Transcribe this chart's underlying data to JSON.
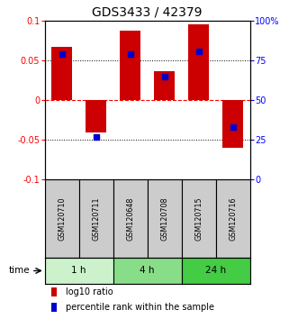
{
  "title": "GDS3433 / 42379",
  "samples": [
    "GSM120710",
    "GSM120711",
    "GSM120648",
    "GSM120708",
    "GSM120715",
    "GSM120716"
  ],
  "log10_ratio": [
    0.067,
    -0.04,
    0.088,
    0.037,
    0.095,
    -0.06
  ],
  "percentile_rank": [
    79,
    27,
    79,
    65,
    81,
    33
  ],
  "ylim_left": [
    -0.1,
    0.1
  ],
  "ylim_right": [
    0,
    100
  ],
  "yticks_left": [
    -0.1,
    -0.05,
    0,
    0.05,
    0.1
  ],
  "ytick_labels_left": [
    "-0.1",
    "-0.05",
    "0",
    "0.05",
    "0.1"
  ],
  "yticks_right": [
    0,
    25,
    50,
    75,
    100
  ],
  "ytick_labels_right": [
    "0",
    "25",
    "50",
    "75",
    "100%"
  ],
  "hlines": [
    -0.05,
    0.0,
    0.05
  ],
  "hline_styles": [
    "dotted",
    "dashed",
    "dotted"
  ],
  "hline_colors": [
    "black",
    "red",
    "black"
  ],
  "time_groups": [
    {
      "label": "1 h",
      "cols": [
        0,
        1
      ],
      "color": "#ccf2cc"
    },
    {
      "label": "4 h",
      "cols": [
        2,
        3
      ],
      "color": "#88dd88"
    },
    {
      "label": "24 h",
      "cols": [
        4,
        5
      ],
      "color": "#44cc44"
    }
  ],
  "bar_color": "#cc0000",
  "dot_color": "#0000cc",
  "bar_width": 0.6,
  "dot_size": 18,
  "sample_box_color": "#cccccc",
  "legend_log10_color": "#cc0000",
  "legend_percentile_color": "#0000cc",
  "legend_log10_label": "log10 ratio",
  "legend_percentile_label": "percentile rank within the sample",
  "time_label": "time",
  "title_fontsize": 10,
  "axis_fontsize": 7.5,
  "tick_fontsize": 7,
  "sample_fontsize": 5.8,
  "legend_fontsize": 7
}
